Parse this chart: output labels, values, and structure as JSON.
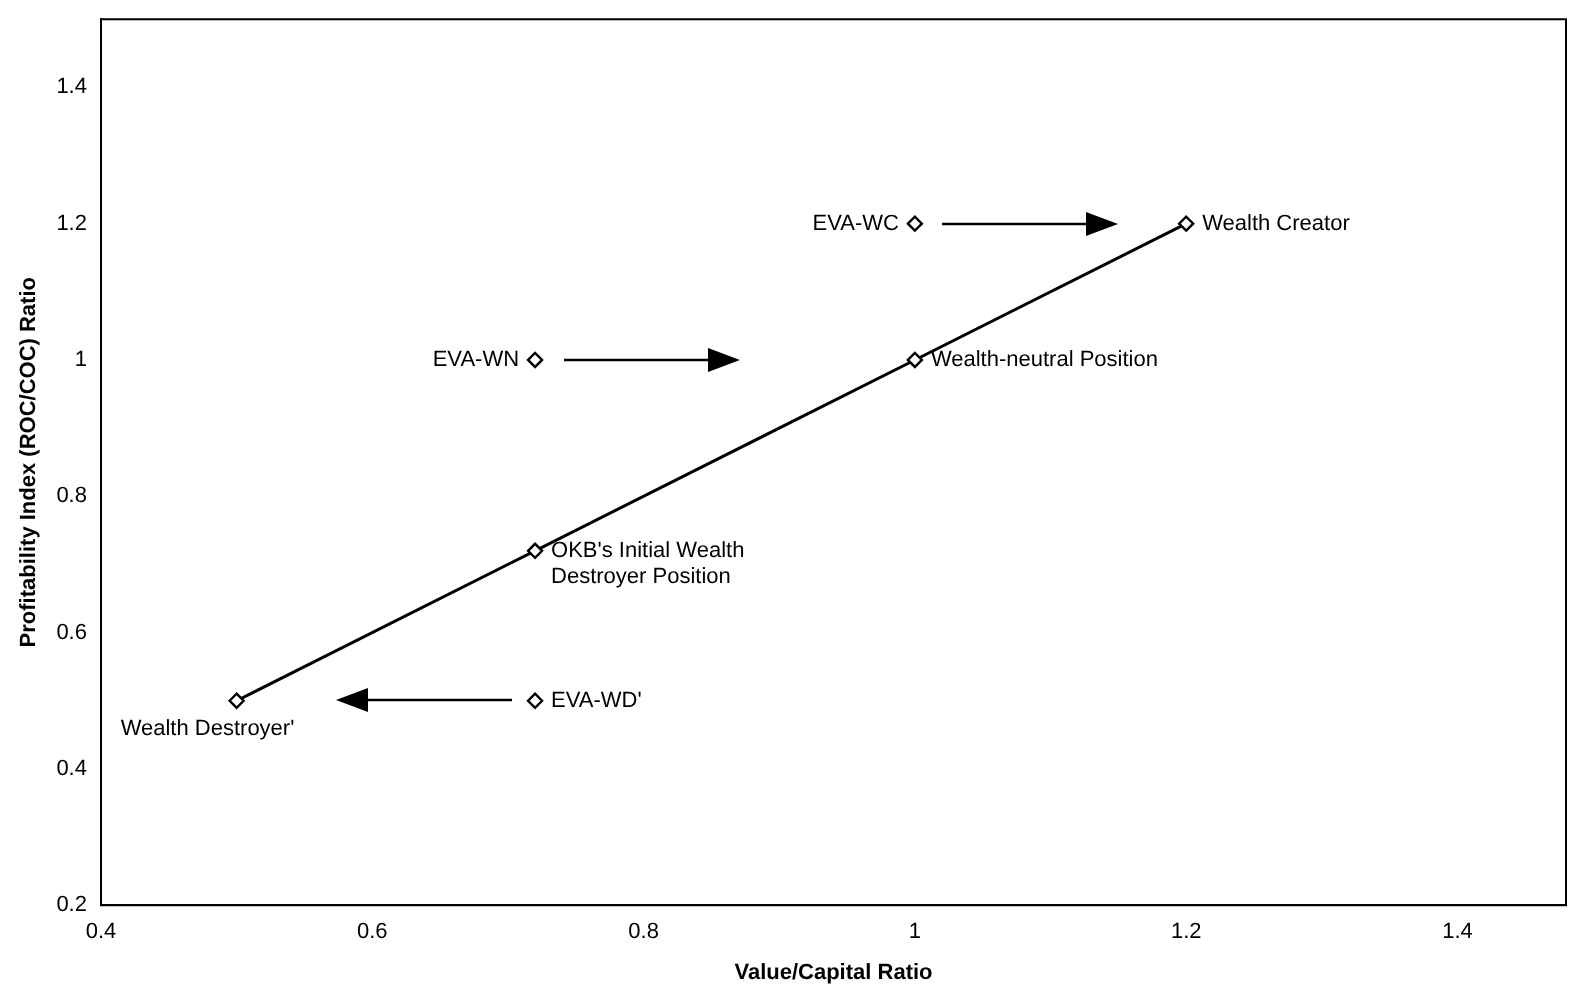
{
  "chart_data": {
    "type": "line",
    "xlabel": "Value/Capital Ratio",
    "ylabel": "Profitability Index (ROC/COC) Ratio",
    "xlim": [
      0.4,
      1.48
    ],
    "xticks": [
      0.4,
      0.6,
      0.8,
      {
        "value": 1,
        "label": "1"
      },
      1.2,
      1.4
    ],
    "ylim": [
      0.2,
      1.5
    ],
    "yticks": [
      0.2,
      0.4,
      0.6,
      0.8,
      {
        "value": 1,
        "label": "1"
      },
      1.2,
      1.4
    ],
    "grid": false,
    "legend": false,
    "marker": "diamond",
    "line_style": "solid",
    "series": [
      {
        "color": "#000000",
        "x": [
          0.5,
          0.72,
          1,
          1.2
        ],
        "values": [
          0.5,
          0.72,
          1,
          1.2
        ]
      },
      {
        "type": "scatter",
        "color": "#000000",
        "x": [
          0.72,
          1,
          0.72
        ],
        "values": [
          1,
          1.2,
          0.5
        ]
      }
    ],
    "annotations": [
      {
        "text": "Wealth Destroyer'",
        "x": 0.5,
        "y": 0.5
      },
      {
        "text": "OKB's Initial Wealth Destroyer Position",
        "x": 0.72,
        "y": 0.72
      },
      {
        "text": "Wealth-neutral Position",
        "x": 1,
        "y": 1
      },
      {
        "text": "Wealth Creator",
        "x": 1.2,
        "y": 1.2
      },
      {
        "text": "EVA-WN",
        "x": 0.72,
        "y": 1
      },
      {
        "text": "EVA-WC",
        "x": 1,
        "y": 1.2
      },
      {
        "text": "EVA-WD'",
        "x": 0.72,
        "y": 0.5
      }
    ]
  }
}
